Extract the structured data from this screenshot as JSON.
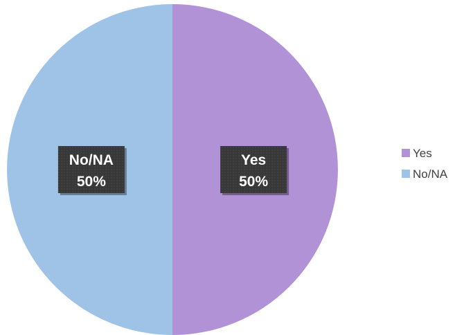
{
  "chart_data": {
    "type": "pie",
    "slices": [
      {
        "label": "Yes",
        "value": 50,
        "percent_label": "50%",
        "color": "#b292d6"
      },
      {
        "label": "No/NA",
        "value": 50,
        "percent_label": "50%",
        "color": "#9fc3e6"
      }
    ],
    "legend": {
      "position": "right",
      "entries": [
        "Yes",
        "No/NA"
      ]
    },
    "data_label_style": {
      "background": "#3a3a3a",
      "text_color": "#ffffff"
    },
    "start_angle": "12 o'clock",
    "direction": "clockwise"
  }
}
